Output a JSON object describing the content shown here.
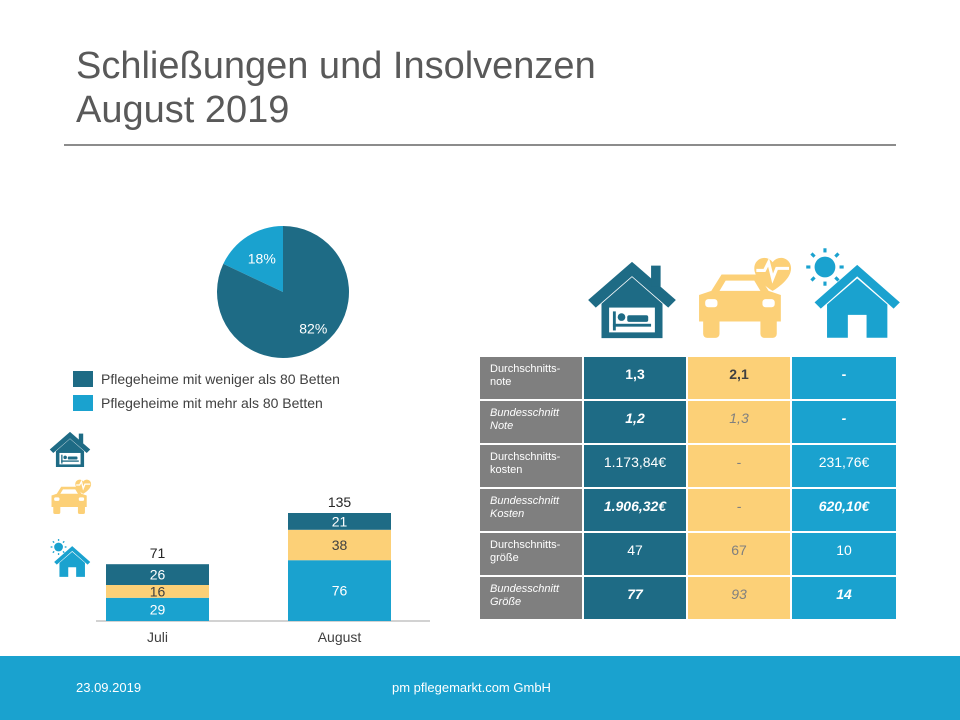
{
  "title": {
    "line1": "Schließungen und Insolvenzen",
    "line2": "August 2019"
  },
  "colors": {
    "dark": "#1e6b85",
    "light": "#1aa2cf",
    "yellow": "#fcd077",
    "gray": "#7f7f7f"
  },
  "chart_data": [
    {
      "type": "pie",
      "slices": [
        {
          "label": "Pflegeheime mit weniger als 80 Betten",
          "value": 82,
          "display": "82%",
          "color": "#1e6b85"
        },
        {
          "label": "Pflegeheime mit mehr als 80 Betten",
          "value": 18,
          "display": "18%",
          "color": "#1aa2cf"
        }
      ],
      "legend": [
        {
          "label": "Pflegeheime mit weniger als 80 Betten",
          "color": "#1e6b85"
        },
        {
          "label": "Pflegeheime mit mehr als 80 Betten",
          "color": "#1aa2cf"
        }
      ]
    },
    {
      "type": "bar",
      "stacked": true,
      "categories": [
        "Juli",
        "August"
      ],
      "series": [
        {
          "icon": "home-care-icon",
          "values": [
            29,
            76
          ],
          "color": "#1aa2cf"
        },
        {
          "icon": "car-heartbeat-icon",
          "values": [
            16,
            38
          ],
          "color": "#fcd077"
        },
        {
          "icon": "house-bed-icon",
          "values": [
            26,
            21
          ],
          "color": "#1e6b85"
        }
      ],
      "totals": [
        71,
        135
      ]
    }
  ],
  "icons": {
    "nursing_home": "house-bed-icon",
    "ambulatory": "car-heartbeat-icon",
    "day_care": "home-care-icon"
  },
  "table": {
    "rows": [
      {
        "label": "Durchschnitts-\nnote",
        "c1": "1,3",
        "c2": "2,1",
        "c3": "-",
        "style": "bold"
      },
      {
        "label": "Bundesschnitt\nNote",
        "c1": "1,2",
        "c2": "1,3",
        "c3": "-",
        "style": "italic"
      },
      {
        "label": "Durchschnitts-\nkosten",
        "c1": "1.173,84€",
        "c2": "-",
        "c3": "231,76€",
        "style": "plain"
      },
      {
        "label": "Bundesschnitt\nKosten",
        "c1": "1.906,32€",
        "c2": "-",
        "c3": "620,10€",
        "style": "italic"
      },
      {
        "label": "Durchschnitts-\ngröße",
        "c1": "47",
        "c2": "67",
        "c3": "10",
        "style": "plain"
      },
      {
        "label": "Bundesschnitt\nGröße",
        "c1": "77",
        "c2": "93",
        "c3": "14",
        "style": "italic"
      }
    ]
  },
  "footer": {
    "date": "23.09.2019",
    "company": "pm pflegemarkt.com GmbH"
  }
}
